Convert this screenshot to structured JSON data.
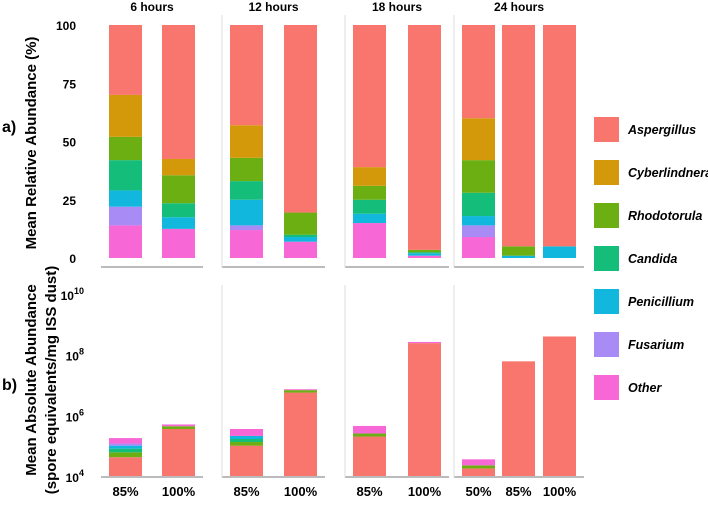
{
  "figure": {
    "panel_a_label": "a)",
    "panel_b_label": "b)",
    "ylabel_a": "Mean Relative Abundance (%)",
    "ylabel_b_line1": "Mean Absolute Abundance",
    "ylabel_b_line2": "(spore equivalents/mg ISS dust)"
  },
  "chart_data": [
    {
      "type": "bar",
      "stacked": true,
      "title": "",
      "ylabel": "Mean Relative Abundance (%)",
      "ylim": [
        0,
        100
      ],
      "yticks": [
        0,
        25,
        50,
        75,
        100
      ],
      "groups": [
        {
          "label": "6 hours",
          "bars": [
            "85%",
            "100%"
          ]
        },
        {
          "label": "12 hours",
          "bars": [
            "85%",
            "100%"
          ]
        },
        {
          "label": "18 hours",
          "bars": [
            "85%",
            "100%"
          ]
        },
        {
          "label": "24 hours",
          "bars": [
            "50%",
            "85%",
            "100%"
          ]
        }
      ],
      "categories": [
        "6h 85%",
        "6h 100%",
        "12h 85%",
        "12h 100%",
        "18h 85%",
        "18h 100%",
        "24h 50%",
        "24h 85%",
        "24h 100%"
      ],
      "series": [
        {
          "name": "Other",
          "color": "#F768D6",
          "values": [
            14,
            12.5,
            12,
            7,
            15,
            1,
            9,
            0,
            0
          ]
        },
        {
          "name": "Fusarium",
          "color": "#A98BF5",
          "values": [
            8,
            0,
            2,
            0,
            0,
            0,
            5,
            0,
            0
          ]
        },
        {
          "name": "Penicillium",
          "color": "#12B7DE",
          "values": [
            7,
            5,
            11,
            2,
            4,
            1,
            4,
            1,
            5
          ]
        },
        {
          "name": "Candida",
          "color": "#14BE7A",
          "values": [
            13,
            6,
            8,
            1,
            6,
            0.5,
            10,
            0,
            0
          ]
        },
        {
          "name": "Rhodotorula",
          "color": "#6BAF12",
          "values": [
            10,
            12,
            10,
            9.5,
            6,
            1,
            14,
            4,
            0
          ]
        },
        {
          "name": "Cyberlindnera",
          "color": "#D4980B",
          "values": [
            18,
            7,
            14,
            0,
            8,
            0,
            18,
            0,
            0
          ]
        },
        {
          "name": "Aspergillus",
          "color": "#F8766D",
          "values": [
            30,
            57.5,
            43,
            80.5,
            61,
            96.5,
            40,
            95,
            95
          ]
        }
      ],
      "legend": "right"
    },
    {
      "type": "bar",
      "stacked": true,
      "title": "",
      "ylabel": "Mean Absolute Abundance (spore equivalents/mg ISS dust)",
      "yscale": "log",
      "ylim": [
        10000,
        10000000000
      ],
      "yticks": [
        10000,
        1000000,
        100000000,
        10000000000
      ],
      "ytick_base": "10",
      "ytick_exponents": [
        "4",
        "6",
        "8",
        "10"
      ],
      "categories": [
        "6h 85%",
        "6h 100%",
        "12h 85%",
        "12h 100%",
        "18h 85%",
        "18h 100%",
        "24h 50%",
        "24h 85%",
        "24h 100%"
      ],
      "xticklabels": [
        "85%",
        "100%",
        "85%",
        "100%",
        "85%",
        "100%",
        "50%",
        "85%",
        "100%"
      ],
      "segments_log10": [
        [
          {
            "name": "Aspergillus",
            "top": 4.62
          },
          {
            "name": "Rhodotorula",
            "top": 4.78
          },
          {
            "name": "Candida",
            "top": 4.9
          },
          {
            "name": "Penicillium",
            "top": 5.0
          },
          {
            "name": "Fusarium",
            "top": 5.07
          },
          {
            "name": "Other",
            "top": 5.25
          }
        ],
        [
          {
            "name": "Aspergillus",
            "top": 5.55
          },
          {
            "name": "Rhodotorula",
            "top": 5.64
          },
          {
            "name": "Other",
            "top": 5.7
          }
        ],
        [
          {
            "name": "Aspergillus",
            "top": 5.0
          },
          {
            "name": "Rhodotorula",
            "top": 5.12
          },
          {
            "name": "Candida",
            "top": 5.22
          },
          {
            "name": "Penicillium",
            "top": 5.32
          },
          {
            "name": "Other",
            "top": 5.55
          }
        ],
        [
          {
            "name": "Aspergillus",
            "top": 6.75
          },
          {
            "name": "Rhodotorula",
            "top": 6.83
          },
          {
            "name": "Other",
            "top": 6.86
          }
        ],
        [
          {
            "name": "Aspergillus",
            "top": 5.3
          },
          {
            "name": "Rhodotorula",
            "top": 5.4
          },
          {
            "name": "Other",
            "top": 5.65
          }
        ],
        [
          {
            "name": "Aspergillus",
            "top": 8.38
          },
          {
            "name": "Other",
            "top": 8.42
          }
        ],
        [
          {
            "name": "Aspergillus",
            "top": 4.25
          },
          {
            "name": "Rhodotorula",
            "top": 4.35
          },
          {
            "name": "Other",
            "top": 4.55
          }
        ],
        [
          {
            "name": "Aspergillus",
            "top": 7.78
          }
        ],
        [
          {
            "name": "Aspergillus",
            "top": 8.6
          }
        ]
      ]
    }
  ],
  "legend": {
    "entries": [
      {
        "name": "Aspergillus",
        "color": "#F8766D"
      },
      {
        "name": "Cyberlindnera",
        "color": "#D4980B"
      },
      {
        "name": "Rhodotorula",
        "color": "#6BAF12"
      },
      {
        "name": "Candida",
        "color": "#14BE7A"
      },
      {
        "name": "Penicillium",
        "color": "#12B7DE"
      },
      {
        "name": "Fusarium",
        "color": "#A98BF5"
      },
      {
        "name": "Other",
        "color": "#F768D6"
      }
    ]
  }
}
